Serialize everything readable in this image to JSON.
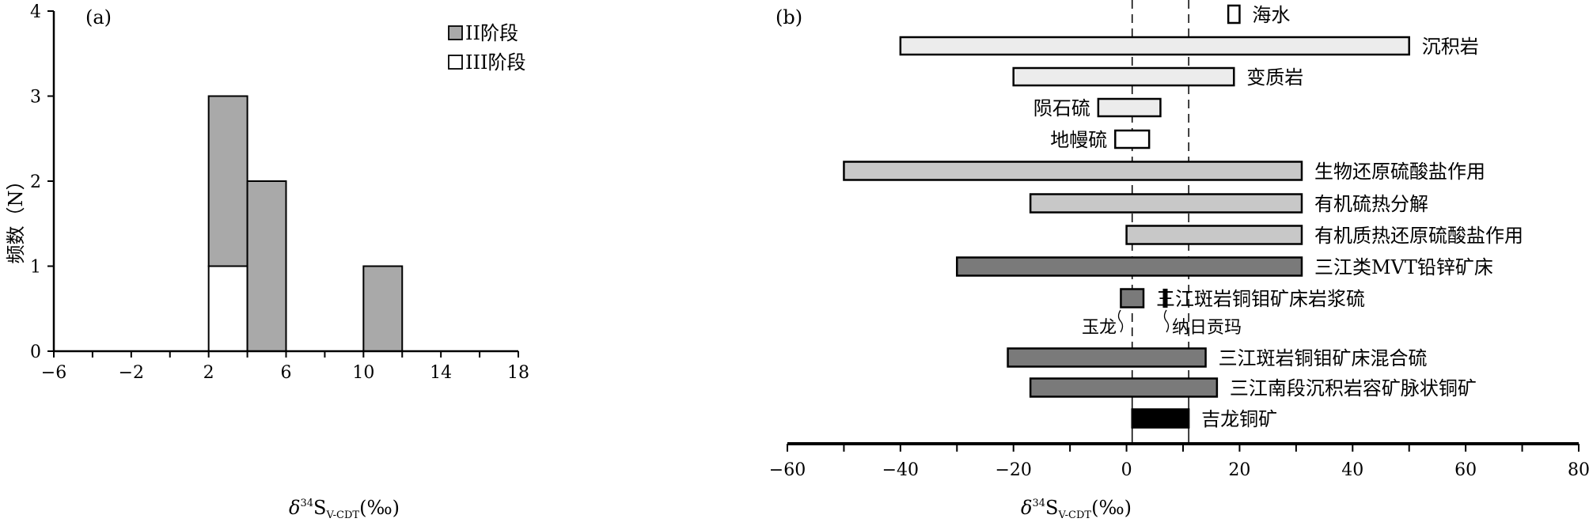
{
  "chart_data": [
    {
      "type": "bar",
      "panel": "(a)",
      "ylabel": "频数（N）",
      "xlabel": {
        "delta": "δ",
        "sup": "34",
        "main": "S",
        "sub": "V-CDT",
        "unit": "(‰)"
      },
      "xlim": [
        -6,
        18
      ],
      "ylim": [
        0,
        4
      ],
      "xticks": [
        -6,
        -2,
        2,
        6,
        10,
        14,
        18
      ],
      "yticks": [
        0,
        1,
        2,
        3,
        4
      ],
      "bins": [
        [
          2,
          4
        ],
        [
          4,
          6
        ],
        [
          10,
          12
        ]
      ],
      "series": [
        {
          "name": "III阶段",
          "color": "#ffffff",
          "values": [
            1,
            0,
            0
          ]
        },
        {
          "name": "II阶段",
          "color": "#a9a9a9",
          "values": [
            2,
            2,
            1
          ]
        }
      ],
      "legend": [
        "II阶段",
        "III阶段"
      ]
    },
    {
      "type": "range",
      "panel": "(b)",
      "xlabel": {
        "delta": "δ",
        "sup": "34",
        "main": "S",
        "sub": "V-CDT",
        "unit": "(‰)"
      },
      "xlim": [
        -60,
        80
      ],
      "xticks": [
        -60,
        -40,
        -20,
        0,
        20,
        40,
        60,
        80
      ],
      "dashed_lines": [
        1,
        11
      ],
      "ranges": [
        {
          "label": "海水",
          "min": 18,
          "max": 20,
          "color": "#ffffff",
          "label_side": "right"
        },
        {
          "label": "沉积岩",
          "min": -40,
          "max": 50,
          "color": "#ececec",
          "label_side": "right"
        },
        {
          "label": "变质岩",
          "min": -20,
          "max": 19,
          "color": "#ececec",
          "label_side": "right"
        },
        {
          "label": "陨石硫",
          "min": -5,
          "max": 6,
          "color": "#ececec",
          "label_side": "left"
        },
        {
          "label": "地幔硫",
          "min": -2,
          "max": 4,
          "color": "#ffffff",
          "label_side": "left"
        },
        {
          "label": "生物还原硫酸盐作用",
          "min": -50,
          "max": 31,
          "color": "#c8c8c8",
          "label_side": "right"
        },
        {
          "label": "有机硫热分解",
          "min": -17,
          "max": 31,
          "color": "#c8c8c8",
          "label_side": "right"
        },
        {
          "label": "有机质热还原硫酸盐作用",
          "min": 0,
          "max": 31,
          "color": "#c8c8c8",
          "label_side": "right"
        },
        {
          "label": "三江类MVT铅锌矿床",
          "min": -30,
          "max": 31,
          "color": "#7a7a7a",
          "label_side": "right"
        },
        {
          "label": "三江斑岩铜钼矿床岩浆硫",
          "min": -1,
          "max": 3,
          "color": "#7a7a7a",
          "label_side": "right",
          "extra": {
            "min": 6.5,
            "max": 7,
            "color": "#000000"
          }
        },
        {
          "label": "三江斑岩铜钼矿床混合硫",
          "min": -21,
          "max": 14,
          "color": "#7a7a7a",
          "label_side": "right"
        },
        {
          "label": "三江南段沉积岩容矿脉状铜矿",
          "min": -17,
          "max": 16,
          "color": "#7a7a7a",
          "label_side": "right"
        },
        {
          "label": "吉龙铜矿",
          "min": 1,
          "max": 11,
          "color": "#000000",
          "label_side": "right"
        }
      ],
      "annotations": [
        {
          "text": "玉龙",
          "x": -2
        },
        {
          "text": "纳日贡玛",
          "x": 11
        }
      ]
    }
  ]
}
